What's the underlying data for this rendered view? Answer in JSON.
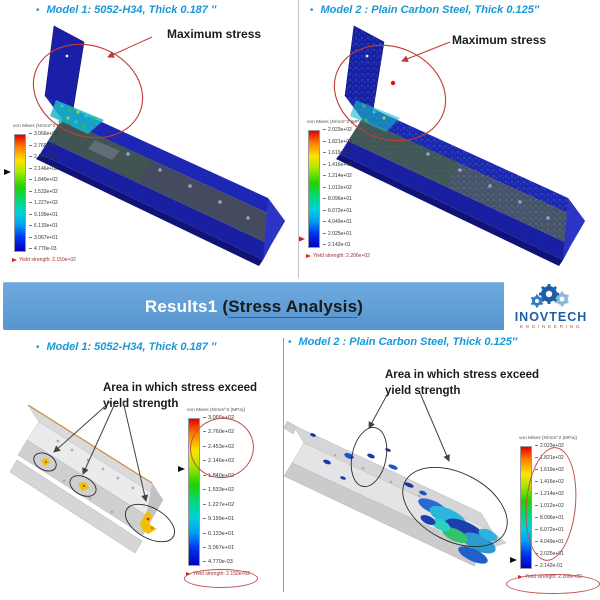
{
  "bullet": "•",
  "banner": {
    "prefix": "Results1",
    "paren_open": "(",
    "highlight": "Stress Analysis",
    "paren_close": ")",
    "bg_color": "#5b9bd5"
  },
  "logo": {
    "name": "INOVTECH",
    "subtitle": "ENGINEERING"
  },
  "panels": {
    "top_left": {
      "title": "Model 1: 5052-H34, Thick 0.187 ″",
      "annotation": "Maximum stress"
    },
    "top_right": {
      "title": "Model 2 : Plain Carbon Steel, Thick 0.125″",
      "annotation": "Maximum stress"
    },
    "bottom_left": {
      "title": "Model 1: 5052-H34, Thick 0.187 ″",
      "annotation_line1": "Area in which stress exceed",
      "annotation_line2": "yield strength"
    },
    "bottom_right": {
      "title": "Model 2 : Plain Carbon Steel, Thick 0.125″",
      "annotation_line1": "Area in which stress exceed",
      "annotation_line2": "yield strength"
    }
  },
  "legends": {
    "model1": {
      "title": "von Mises (N/mm^2 (MPa))",
      "values": [
        "3.066e+02",
        "2.760e+02",
        "2.453e+02",
        "2.146e+02",
        "1.840e+02",
        "1.533e+02",
        "1.227e+02",
        "9.199e+01",
        "6.133e+01",
        "3.067e+01",
        "4.770e-03"
      ],
      "yield_label": "Yield strength: 2.150e+02"
    },
    "model2": {
      "title": "von Mises (N/mm^2 (MPa))",
      "values": [
        "2.023e+02",
        "1.821e+02",
        "1.619e+02",
        "1.416e+02",
        "1.214e+02",
        "1.012e+02",
        "8.096e+01",
        "6.072e+01",
        "4.049e+01",
        "2.025e+01",
        "2.142e-01"
      ],
      "yield_label": "Yield strength: 2.206e+02"
    }
  },
  "colors": {
    "accent_blue": "#1899d6",
    "banner_blue": "#5b9bd5",
    "annotation_red": "#c23b33",
    "part_blue": "#1a1fa8"
  }
}
